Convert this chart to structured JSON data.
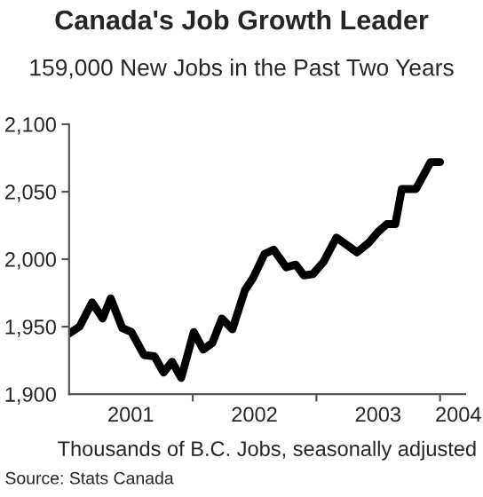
{
  "chart_data": {
    "type": "line",
    "title": "Canada's Job Growth Leader",
    "subtitle": "159,000 New Jobs in the Past Two Years",
    "xlabel": "Thousands of B.C. Jobs, seasonally adjusted",
    "annotations": [
      "Source: Stats Canada"
    ],
    "series": [
      {
        "color": "#000000",
        "x": [
          "2001-01-01",
          "2001-02-01",
          "2001-03-10",
          "2001-04-10",
          "2001-05-04",
          "2001-06-07",
          "2001-07-04",
          "2001-08-10",
          "2001-09-10",
          "2001-10-07",
          "2001-11-01",
          "2001-11-28",
          "2002-01-04",
          "2002-02-01",
          "2002-02-28",
          "2002-03-28",
          "2002-04-28",
          "2002-06-04",
          "2002-06-28",
          "2002-08-01",
          "2002-08-28",
          "2002-10-04",
          "2002-11-01",
          "2002-11-25",
          "2002-12-22",
          "2003-01-22",
          "2003-03-01",
          "2003-04-04",
          "2003-05-01",
          "2003-06-04",
          "2003-07-01",
          "2003-07-28",
          "2003-08-22",
          "2003-09-10",
          "2003-10-22",
          "2003-12-04",
          "2004-01-01"
        ],
        "values": [
          1945,
          1950,
          1968,
          1956,
          1971,
          1949,
          1946,
          1929,
          1928,
          1916,
          1924,
          1912,
          1946,
          1933,
          1938,
          1956,
          1948,
          1977,
          1986,
          2004,
          2007,
          1994,
          1996,
          1988,
          1989,
          1998,
          2016,
          2010,
          2005,
          2012,
          2020,
          2026,
          2026,
          2052,
          2052,
          2072,
          2072
        ]
      }
    ],
    "xlim": [
      "2001-01-01",
      "2004-03-15"
    ],
    "xticks": [
      {
        "value": "2001-07-02",
        "label": "2001"
      },
      {
        "value": "2002-01-01",
        "label": null
      },
      {
        "value": "2002-07-02",
        "label": "2002"
      },
      {
        "value": "2003-01-01",
        "label": null
      },
      {
        "value": "2003-07-02",
        "label": "2003"
      },
      {
        "value": "2004-01-01",
        "label": null
      },
      {
        "value": "2004-02-24",
        "label": "2004"
      }
    ],
    "ylim": [
      1900,
      2100
    ],
    "yticks": [
      {
        "value": 1900,
        "label": "1,900"
      },
      {
        "value": 1950,
        "label": "1,950"
      },
      {
        "value": 2000,
        "label": "2,000"
      },
      {
        "value": 2050,
        "label": "2,050"
      },
      {
        "value": 2100,
        "label": "2,100"
      }
    ],
    "grid": false,
    "legend": false,
    "marker": "none",
    "line_style": "solid"
  }
}
